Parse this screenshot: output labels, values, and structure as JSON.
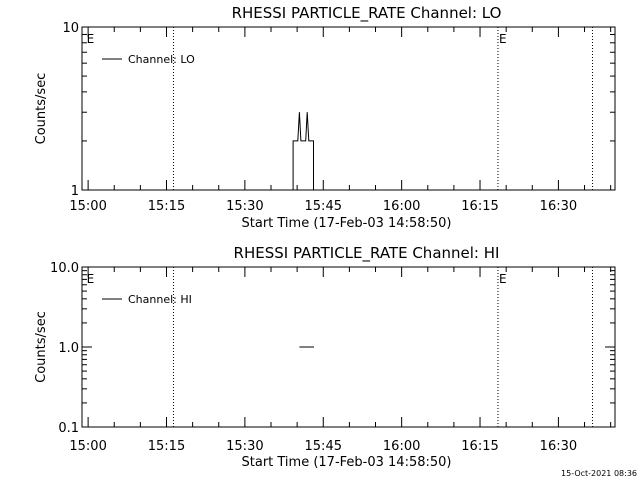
{
  "chart_data": [
    {
      "type": "line",
      "title": "RHESSI PARTICLE_RATE Channel: LO",
      "xlabel": "Start Time (17-Feb-03 14:58:50)",
      "ylabel": "Counts/sec",
      "yscale": "log",
      "ylim": [
        1,
        10
      ],
      "y_tick_labels": [
        "1",
        "10"
      ],
      "xlim_minutes": [
        0,
        102
      ],
      "x_tick_labels": [
        "15:00",
        "15:15",
        "15:30",
        "15:45",
        "16:00",
        "16:15",
        "16:30"
      ],
      "x_tick_minutes": [
        1.17,
        16.17,
        31.17,
        46.17,
        61.17,
        76.17,
        91.17
      ],
      "legend": {
        "position": "top-left",
        "entries": [
          "Channel: LO"
        ]
      },
      "vertical_dotted_lines_minutes": [
        17.5,
        79.6,
        97.7
      ],
      "event_markers": [
        {
          "label": "E",
          "minute": 0.7
        },
        {
          "label": "E",
          "minute": 79.6
        }
      ],
      "series": [
        {
          "name": "Channel: LO",
          "step": true,
          "points": [
            [
              40.4,
              1.0
            ],
            [
              40.4,
              2.0
            ],
            [
              41.3,
              2.0
            ],
            [
              41.6,
              3.0
            ],
            [
              41.9,
              2.0
            ],
            [
              42.8,
              2.0
            ],
            [
              43.1,
              3.0
            ],
            [
              43.4,
              2.0
            ],
            [
              44.3,
              2.0
            ],
            [
              44.3,
              1.0
            ]
          ]
        }
      ]
    },
    {
      "type": "line",
      "title": "RHESSI PARTICLE_RATE Channel: HI",
      "xlabel": "Start Time (17-Feb-03 14:58:50)",
      "ylabel": "Counts/sec",
      "yscale": "log",
      "ylim": [
        0.1,
        10
      ],
      "y_tick_labels": [
        "0.1",
        "1.0",
        "10.0"
      ],
      "xlim_minutes": [
        0,
        102
      ],
      "x_tick_labels": [
        "15:00",
        "15:15",
        "15:30",
        "15:45",
        "16:00",
        "16:15",
        "16:30"
      ],
      "x_tick_minutes": [
        1.17,
        16.17,
        31.17,
        46.17,
        61.17,
        76.17,
        91.17
      ],
      "legend": {
        "position": "top-left",
        "entries": [
          "Channel: HI"
        ]
      },
      "vertical_dotted_lines_minutes": [
        17.5,
        79.6,
        97.7
      ],
      "event_markers": [
        {
          "label": "E",
          "minute": 0.7
        },
        {
          "label": "E",
          "minute": 79.6
        }
      ],
      "series": [
        {
          "name": "Channel: HI",
          "step": true,
          "points": [
            [
              41.6,
              1.0
            ],
            [
              44.4,
              1.0
            ]
          ]
        }
      ]
    }
  ],
  "footer": {
    "timestamp": "15-Oct-2021 08:36"
  }
}
